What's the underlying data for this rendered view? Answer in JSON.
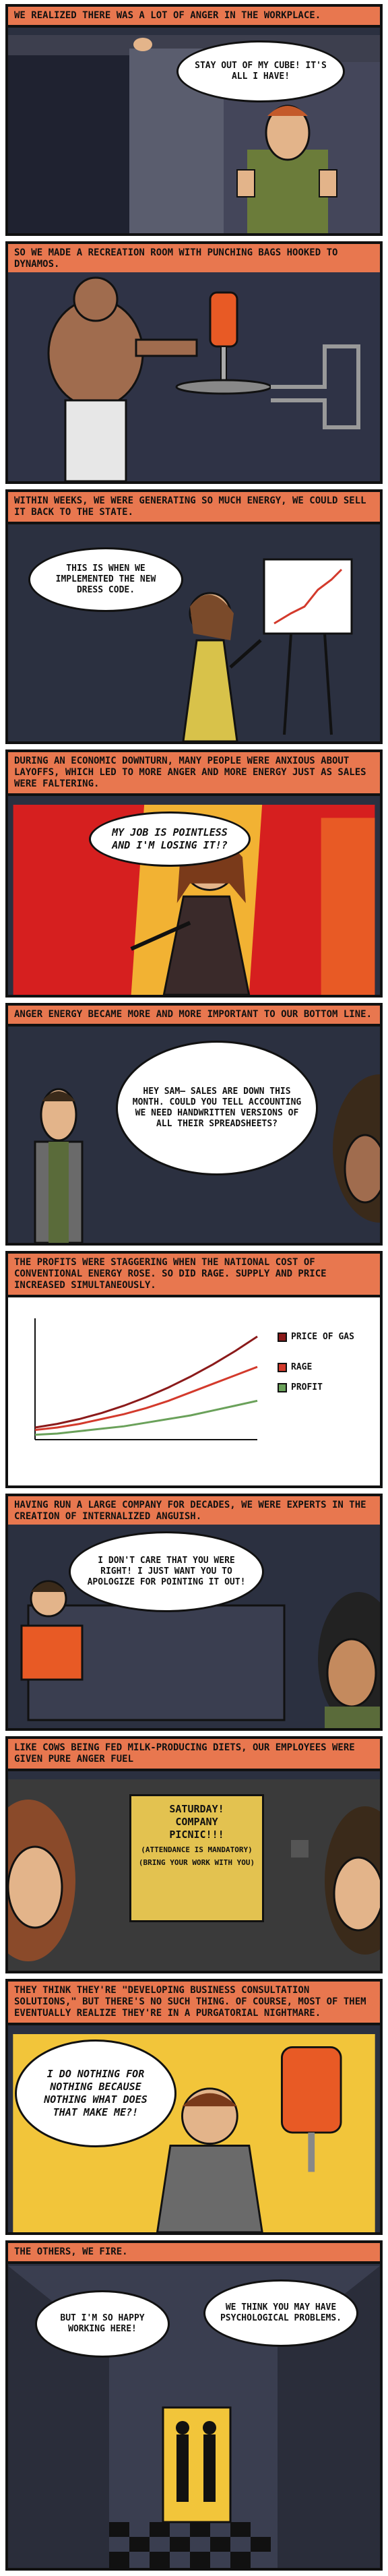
{
  "panels": [
    {
      "caption": "We realized there was a lot of anger in the workplace.",
      "bubbles": [
        "Stay out of my cube! It's all I have!"
      ]
    },
    {
      "caption": "So we made a recreation room with punching bags hooked to dynamos.",
      "bubbles": []
    },
    {
      "caption": "Within weeks, we were generating so much energy, we could sell it back to the state.",
      "bubbles": [
        "This is when we implemented the new dress code."
      ]
    },
    {
      "caption": "During an economic downturn, many people were anxious about layoffs, which led to more anger and more energy just as sales were faltering.",
      "bubbles": [
        "My job is pointless and I'm losing it!?"
      ]
    },
    {
      "caption": "Anger energy became more and more important to our bottom line.",
      "bubbles": [
        "Hey Sam— Sales are down this month. Could you tell accounting we need handwritten versions of all their spreadsheets?"
      ]
    },
    {
      "caption": "The profits were staggering when the national cost of conventional energy rose. So did rage. Supply and price increased simultaneously.",
      "bubbles": []
    },
    {
      "caption": "Having run a large company for decades, we were experts in the creation of internalized anguish.",
      "bubbles": [
        "I don't care that you were right! I just want you to apologize for pointing it out!"
      ]
    },
    {
      "caption": "Like cows being fed milk-producing diets, our employees were given pure anger fuel",
      "bubbles": []
    },
    {
      "caption": "They think they're \"developing business consultation solutions,\" but there's no such thing. Of course, most of them eventually realize they're in a purgatorial nightmare.",
      "bubbles": [
        "I do nothing for nothing because nothing what does that make me?!"
      ]
    },
    {
      "caption": "The others, we fire.",
      "bubbles": [
        "But I'm so happy working here!",
        "We think you may have psychological problems."
      ]
    }
  ],
  "sign": {
    "line1": "Saturday!",
    "line2": "Company",
    "line3": "Picnic!!!",
    "line4": "(Attendance is mandatory)",
    "line5": "(Bring your work with you)"
  },
  "chart_data": {
    "type": "line",
    "title": "",
    "xlabel": "",
    "ylabel": "",
    "grid": false,
    "legend_position": "right",
    "x": [
      0,
      1,
      2,
      3,
      4,
      5,
      6,
      7,
      8,
      9,
      10
    ],
    "series": [
      {
        "name": "Price of gas",
        "color": "#8b1a1a",
        "values": [
          1.0,
          1.3,
          1.7,
          2.2,
          2.8,
          3.5,
          4.3,
          5.2,
          6.2,
          7.3,
          8.5
        ]
      },
      {
        "name": "Rage",
        "color": "#d33a2c",
        "values": [
          0.8,
          1.0,
          1.3,
          1.7,
          2.1,
          2.6,
          3.2,
          3.9,
          4.6,
          5.3,
          6.0
        ]
      },
      {
        "name": "Profit",
        "color": "#6aa15a",
        "values": [
          0.4,
          0.5,
          0.7,
          0.9,
          1.1,
          1.4,
          1.7,
          2.0,
          2.4,
          2.8,
          3.2
        ]
      }
    ],
    "ylim": [
      0,
      10
    ]
  },
  "colors": {
    "caption_bg": "#e8774f",
    "dark_bg": "#2b3040",
    "accent_red": "#d33a2c",
    "sign_yellow": "#e3c250"
  }
}
